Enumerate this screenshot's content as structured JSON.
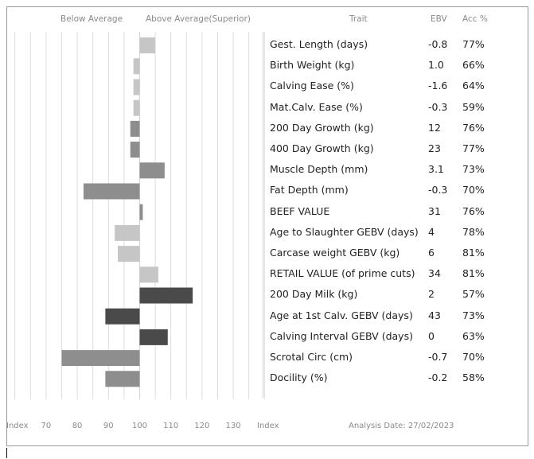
{
  "headers": {
    "below": "Below Average",
    "above": "Above Average(Superior)",
    "trait": "Trait",
    "ebv": "EBV",
    "acc": "Acc %"
  },
  "footer": {
    "index_left": "Index",
    "index_right": "Index",
    "analysis_date": "Analysis Date: 27/02/2023"
  },
  "colors": {
    "light": "#c6c6c6",
    "mid": "#8e8e8e",
    "dark": "#4a4a4a",
    "grid": "#d6d6d6"
  },
  "chart_data": {
    "type": "bar",
    "orientation": "horizontal",
    "baseline": 100,
    "xlim": [
      60,
      140
    ],
    "x_ticks": [
      70,
      80,
      90,
      100,
      110,
      120,
      130
    ],
    "grid": true,
    "rows": [
      {
        "trait": "Gest. Length (days)",
        "ebv": "-0.8",
        "acc": "77%",
        "index": 105,
        "shade": "light"
      },
      {
        "trait": "Birth Weight (kg)",
        "ebv": "1.0",
        "acc": "66%",
        "index": 98,
        "shade": "light"
      },
      {
        "trait": "Calving Ease (%)",
        "ebv": "-1.6",
        "acc": "64%",
        "index": 98,
        "shade": "light"
      },
      {
        "trait": "Mat.Calv. Ease (%)",
        "ebv": "-0.3",
        "acc": "59%",
        "index": 98,
        "shade": "light"
      },
      {
        "trait": "200 Day Growth (kg)",
        "ebv": "12",
        "acc": "76%",
        "index": 97,
        "shade": "mid"
      },
      {
        "trait": "400 Day Growth (kg)",
        "ebv": "23",
        "acc": "77%",
        "index": 97,
        "shade": "mid"
      },
      {
        "trait": "Muscle Depth (mm)",
        "ebv": "3.1",
        "acc": "73%",
        "index": 108,
        "shade": "mid"
      },
      {
        "trait": "Fat Depth (mm)",
        "ebv": "-0.3",
        "acc": "70%",
        "index": 82,
        "shade": "mid"
      },
      {
        "trait": "BEEF VALUE",
        "ebv": "31",
        "acc": "76%",
        "index": 101,
        "shade": "mid"
      },
      {
        "trait": "Age to Slaughter GEBV (days)",
        "ebv": "4",
        "acc": "78%",
        "index": 92,
        "shade": "light"
      },
      {
        "trait": "Carcase weight GEBV (kg)",
        "ebv": "6",
        "acc": "81%",
        "index": 93,
        "shade": "light"
      },
      {
        "trait": "RETAIL VALUE (of prime cuts)",
        "ebv": "34",
        "acc": "81%",
        "index": 106,
        "shade": "light"
      },
      {
        "trait": "200 Day Milk (kg)",
        "ebv": "2",
        "acc": "57%",
        "index": 117,
        "shade": "dark"
      },
      {
        "trait": "Age at 1st Calv. GEBV (days)",
        "ebv": "43",
        "acc": "73%",
        "index": 89,
        "shade": "dark"
      },
      {
        "trait": "Calving Interval GEBV (days)",
        "ebv": "0",
        "acc": "63%",
        "index": 109,
        "shade": "dark"
      },
      {
        "trait": "Scrotal Circ (cm)",
        "ebv": "-0.7",
        "acc": "70%",
        "index": 75,
        "shade": "mid"
      },
      {
        "trait": "Docility (%)",
        "ebv": "-0.2",
        "acc": "58%",
        "index": 89,
        "shade": "mid"
      }
    ]
  }
}
